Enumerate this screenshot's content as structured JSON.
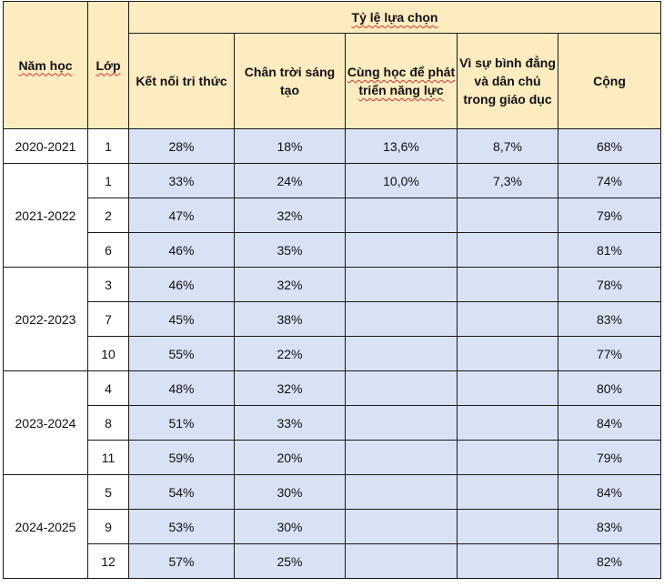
{
  "headers": {
    "nam_hoc": "Năm học",
    "lop": "Lớp",
    "ty_le": "Tỷ lệ lựa chọn",
    "ket_noi": "Kết nối tri thức",
    "chan_troi": "Chân trời sáng tạo",
    "cung_hoc": "Cùng học để phát triển năng lực",
    "vi_su": "Vì sự bình đẳng và dân chủ trong giáo dục",
    "cong": "Cộng"
  },
  "rows": [
    {
      "year": "2020-2021",
      "grade": "1",
      "ket_noi": "28%",
      "chan_troi": "18%",
      "cung_hoc": "13,6%",
      "vi_su": "8,7%",
      "cong": "68%"
    },
    {
      "year": "2021-2022",
      "grade": "1",
      "ket_noi": "33%",
      "chan_troi": "24%",
      "cung_hoc": "10,0%",
      "vi_su": "7,3%",
      "cong": "74%"
    },
    {
      "year": "2021-2022",
      "grade": "2",
      "ket_noi": "47%",
      "chan_troi": "32%",
      "cung_hoc": "",
      "vi_su": "",
      "cong": "79%"
    },
    {
      "year": "2021-2022",
      "grade": "6",
      "ket_noi": "46%",
      "chan_troi": "35%",
      "cung_hoc": "",
      "vi_su": "",
      "cong": "81%"
    },
    {
      "year": "2022-2023",
      "grade": "3",
      "ket_noi": "46%",
      "chan_troi": "32%",
      "cung_hoc": "",
      "vi_su": "",
      "cong": "78%"
    },
    {
      "year": "2022-2023",
      "grade": "7",
      "ket_noi": "45%",
      "chan_troi": "38%",
      "cung_hoc": "",
      "vi_su": "",
      "cong": "83%"
    },
    {
      "year": "2022-2023",
      "grade": "10",
      "ket_noi": "55%",
      "chan_troi": "22%",
      "cung_hoc": "",
      "vi_su": "",
      "cong": "77%"
    },
    {
      "year": "2023-2024",
      "grade": "4",
      "ket_noi": "48%",
      "chan_troi": "32%",
      "cung_hoc": "",
      "vi_su": "",
      "cong": "80%"
    },
    {
      "year": "2023-2024",
      "grade": "8",
      "ket_noi": "51%",
      "chan_troi": "33%",
      "cung_hoc": "",
      "vi_su": "",
      "cong": "84%"
    },
    {
      "year": "2023-2024",
      "grade": "11",
      "ket_noi": "59%",
      "chan_troi": "20%",
      "cung_hoc": "",
      "vi_su": "",
      "cong": "79%"
    },
    {
      "year": "2024-2025",
      "grade": "5",
      "ket_noi": "54%",
      "chan_troi": "30%",
      "cung_hoc": "",
      "vi_su": "",
      "cong": "84%"
    },
    {
      "year": "2024-2025",
      "grade": "9",
      "ket_noi": "53%",
      "chan_troi": "30%",
      "cung_hoc": "",
      "vi_su": "",
      "cong": "83%"
    },
    {
      "year": "2024-2025",
      "grade": "12",
      "ket_noi": "57%",
      "chan_troi": "25%",
      "cung_hoc": "",
      "vi_su": "",
      "cong": "82%"
    }
  ]
}
